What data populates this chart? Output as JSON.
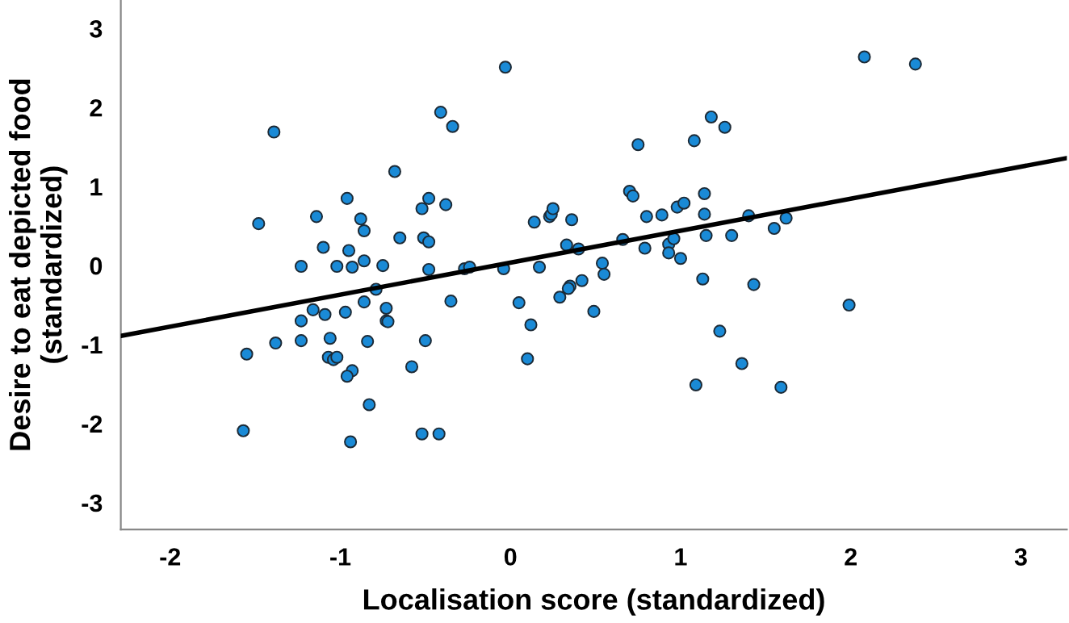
{
  "chart_data": {
    "type": "scatter",
    "xlabel": "Localisation score (standardized)",
    "ylabel": "Desire to eat depicted food\n(standardized)",
    "xlim": [
      -2.29,
      3.27
    ],
    "ylim": [
      -3.34,
      3.36
    ],
    "xticks": [
      -2,
      -1,
      0,
      1,
      2,
      3
    ],
    "yticks": [
      -3,
      -2,
      -1,
      0,
      1,
      2,
      3
    ],
    "grid": false,
    "legend": false,
    "series": [
      {
        "color": "#1a8ad6",
        "marker": "circle",
        "x": [
          -0.41,
          -1.39,
          -0.68,
          -0.96,
          -0.48,
          -0.52,
          -1.14,
          -0.88,
          -1.48,
          -0.86,
          -0.65,
          -0.51,
          -0.48,
          -1.1,
          -0.95,
          -1.23,
          -1.02,
          -0.93,
          -0.86,
          -0.75,
          -0.48,
          -0.79,
          -0.86,
          -1.16,
          -1.09,
          -0.97,
          -0.73,
          -1.23,
          -0.73,
          -0.72,
          -1.38,
          -1.23,
          -1.06,
          -0.84,
          -0.5,
          -1.55,
          -1.07,
          -1.04,
          -1.02,
          -0.93,
          -0.96,
          -0.58,
          -0.83,
          -1.57,
          -0.94,
          -0.52,
          -0.42,
          -0.03,
          -0.34,
          -0.38,
          0.75,
          1.18,
          1.26,
          1.08,
          0.7,
          0.72,
          1.14,
          1.14,
          0.8,
          0.89,
          0.98,
          1.02,
          0.14,
          0.23,
          0.24,
          0.25,
          0.36,
          0.66,
          0.79,
          0.93,
          0.96,
          1.15,
          1.3,
          1.4,
          0.93,
          1.0,
          0.33,
          0.4,
          -0.04,
          -0.27,
          -0.24,
          0.17,
          0.54,
          0.55,
          0.42,
          0.35,
          0.34,
          0.29,
          -0.35,
          0.05,
          1.13,
          0.12,
          0.49,
          1.23,
          0.1,
          1.36,
          1.09,
          2.08,
          2.38,
          1.55,
          1.62,
          1.43,
          1.99,
          1.59
        ],
        "values": [
          1.94,
          1.69,
          1.19,
          0.85,
          0.85,
          0.72,
          0.62,
          0.59,
          0.53,
          0.44,
          0.35,
          0.35,
          0.3,
          0.23,
          0.19,
          -0.01,
          -0.01,
          -0.02,
          0.06,
          0.0,
          -0.05,
          -0.3,
          -0.46,
          -0.56,
          -0.62,
          -0.59,
          -0.54,
          -0.7,
          -0.7,
          -0.71,
          -0.98,
          -0.95,
          -0.92,
          -0.96,
          -0.95,
          -1.12,
          -1.16,
          -1.19,
          -1.16,
          -1.33,
          -1.4,
          -1.28,
          -1.76,
          -2.09,
          -2.23,
          -2.13,
          -2.13,
          2.51,
          1.76,
          0.77,
          1.53,
          1.88,
          1.75,
          1.58,
          0.94,
          0.88,
          0.91,
          0.65,
          0.62,
          0.64,
          0.74,
          0.79,
          0.55,
          0.62,
          0.65,
          0.72,
          0.58,
          0.33,
          0.22,
          0.27,
          0.34,
          0.38,
          0.38,
          0.63,
          0.16,
          0.09,
          0.26,
          0.21,
          -0.04,
          -0.04,
          -0.02,
          -0.02,
          0.03,
          -0.11,
          -0.19,
          -0.26,
          -0.29,
          -0.4,
          -0.45,
          -0.47,
          -0.17,
          -0.75,
          -0.58,
          -0.83,
          -1.18,
          -1.24,
          -1.51,
          2.64,
          2.55,
          0.47,
          0.6,
          -0.24,
          -0.5,
          -1.54
        ]
      },
      {
        "type": "line",
        "color": "#000000",
        "marker": "none",
        "line_style": "solid",
        "x": [
          -2.29,
          3.27
        ],
        "values": [
          -0.89,
          1.36
        ]
      }
    ]
  }
}
